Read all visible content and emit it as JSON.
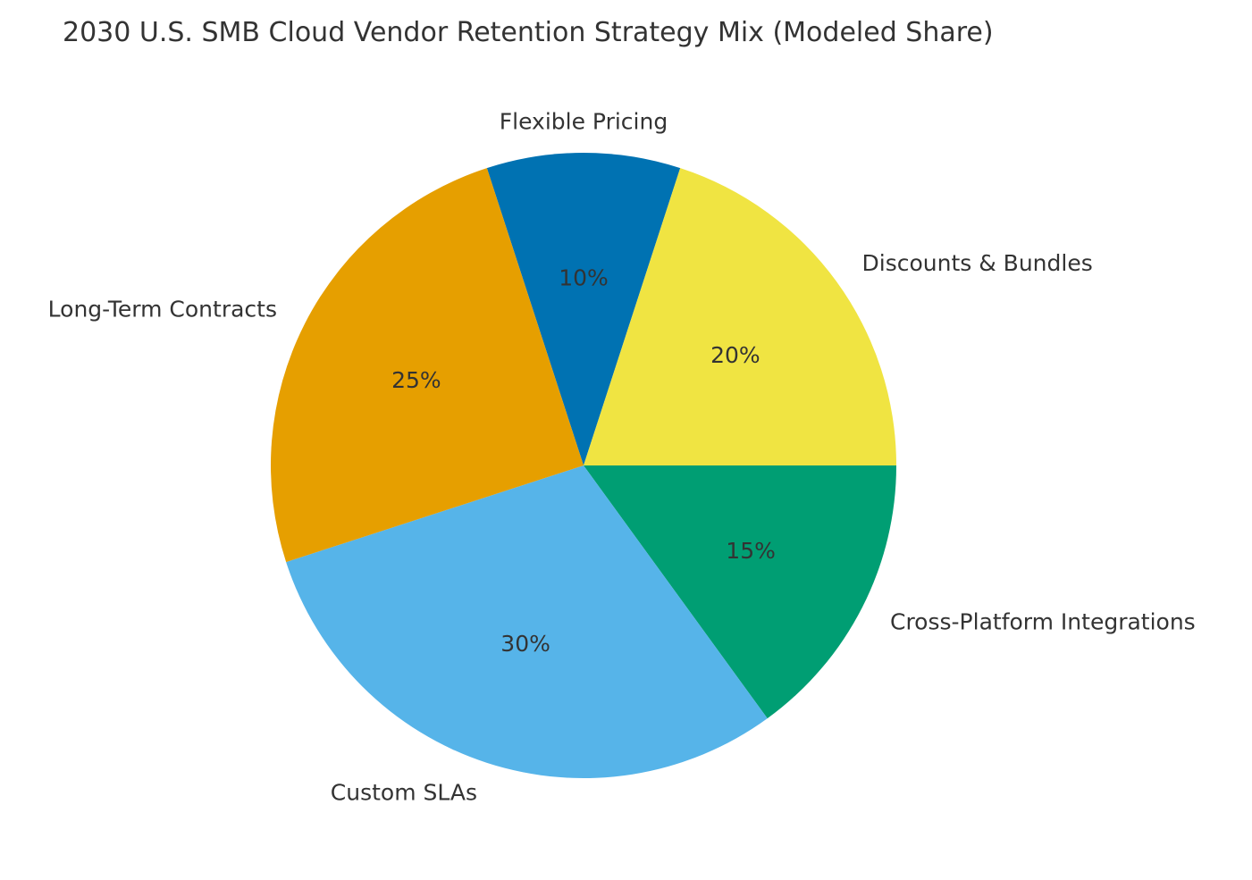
{
  "chart_data": {
    "type": "pie",
    "title": "2030 U.S. SMB Cloud Vendor Retention Strategy Mix (Modeled Share)",
    "slices": [
      {
        "label": "Flexible Pricing",
        "value": 10,
        "pct_label": "10%",
        "color": "#0072B2"
      },
      {
        "label": "Discounts & Bundles",
        "value": 20,
        "pct_label": "20%",
        "color": "#F0E442"
      },
      {
        "label": "Cross-Platform Integrations",
        "value": 15,
        "pct_label": "15%",
        "color": "#009E73"
      },
      {
        "label": "Custom SLAs",
        "value": 30,
        "pct_label": "30%",
        "color": "#56B4E9"
      },
      {
        "label": "Long-Term Contracts",
        "value": 25,
        "pct_label": "25%",
        "color": "#E69F00"
      }
    ],
    "direction": "clockwise",
    "legend": "none"
  }
}
